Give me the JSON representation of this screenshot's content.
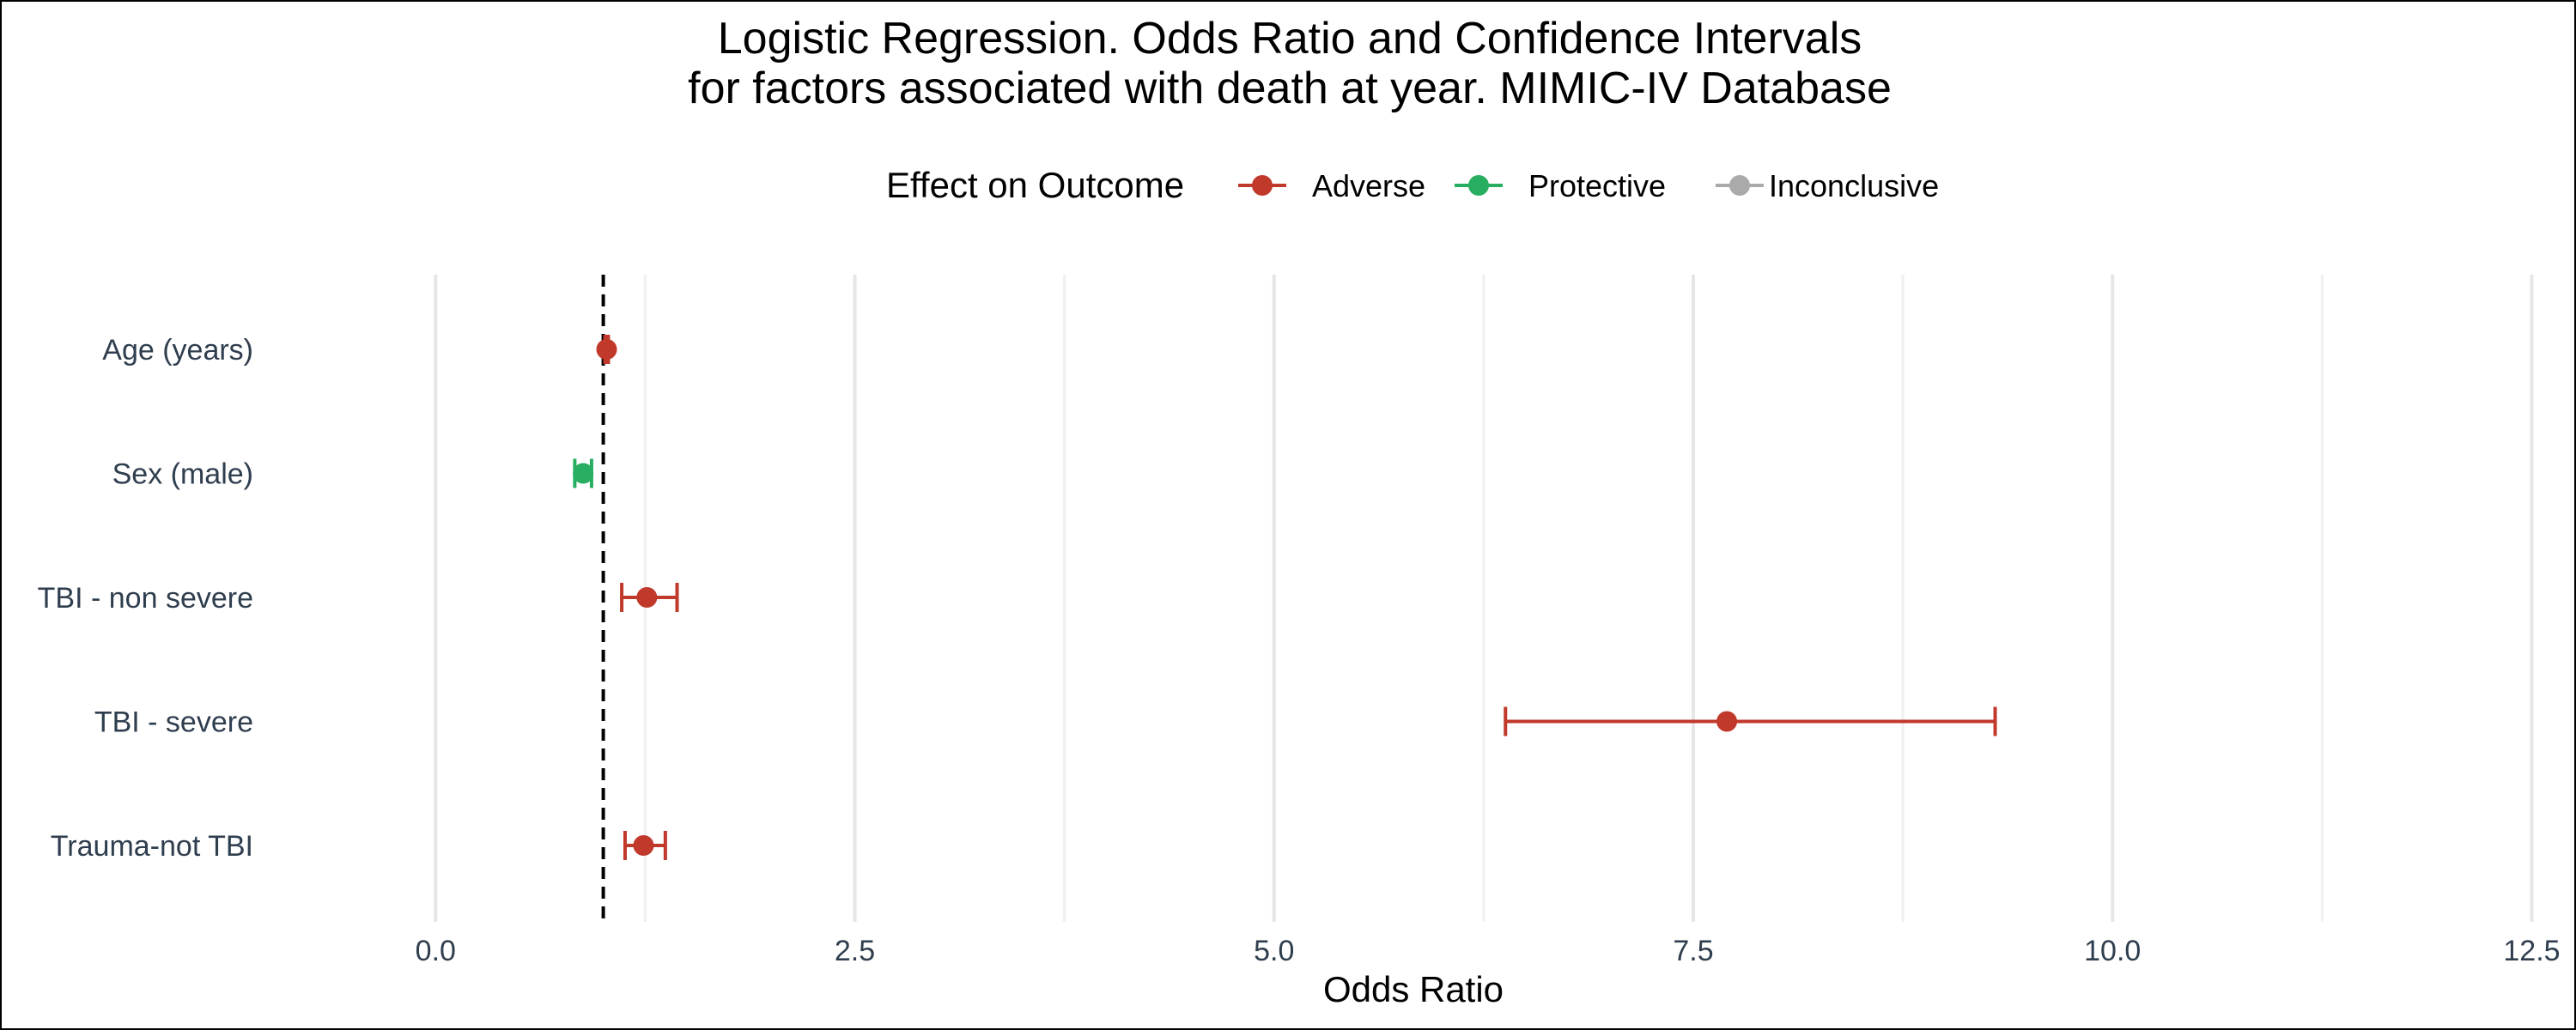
{
  "chart_data": {
    "type": "forest",
    "title_lines": [
      "Logistic Regression. Odds Ratio and Confidence Intervals",
      "for factors associated with death at year. MIMIC-IV Database"
    ],
    "xlabel": "Odds Ratio",
    "ylabel": "",
    "xlim": [
      -1.0,
      12.6
    ],
    "xticks": [
      0.0,
      2.5,
      5.0,
      7.5,
      10.0,
      12.5
    ],
    "xtick_labels": [
      "0.0",
      "2.5",
      "5.0",
      "7.5",
      "10.0",
      "12.5"
    ],
    "reference_line": 1.0,
    "grid": true,
    "legend": {
      "title": "Effect on Outcome",
      "position": "top",
      "entries": [
        {
          "label": "Adverse",
          "color": "#c0392b"
        },
        {
          "label": "Protective",
          "color": "#27ae60"
        },
        {
          "label": "Inconclusive",
          "color": "#aaaaaa"
        }
      ]
    },
    "categories": [
      "Age (years)",
      "Sex (male)",
      "TBI - non severe",
      "TBI - severe",
      "Trauma-not TBI"
    ],
    "points": [
      {
        "label": "Age (years)",
        "or": 1.02,
        "lower": 1.01,
        "upper": 1.03,
        "effect": "Adverse"
      },
      {
        "label": "Sex (male)",
        "or": 0.88,
        "lower": 0.83,
        "upper": 0.93,
        "effect": "Protective"
      },
      {
        "label": "TBI - non severe",
        "or": 1.26,
        "lower": 1.11,
        "upper": 1.44,
        "effect": "Adverse"
      },
      {
        "label": "TBI - severe",
        "or": 7.7,
        "lower": 6.38,
        "upper": 9.3,
        "effect": "Adverse"
      },
      {
        "label": "Trauma-not TBI",
        "or": 1.24,
        "lower": 1.13,
        "upper": 1.37,
        "effect": "Adverse"
      }
    ]
  }
}
